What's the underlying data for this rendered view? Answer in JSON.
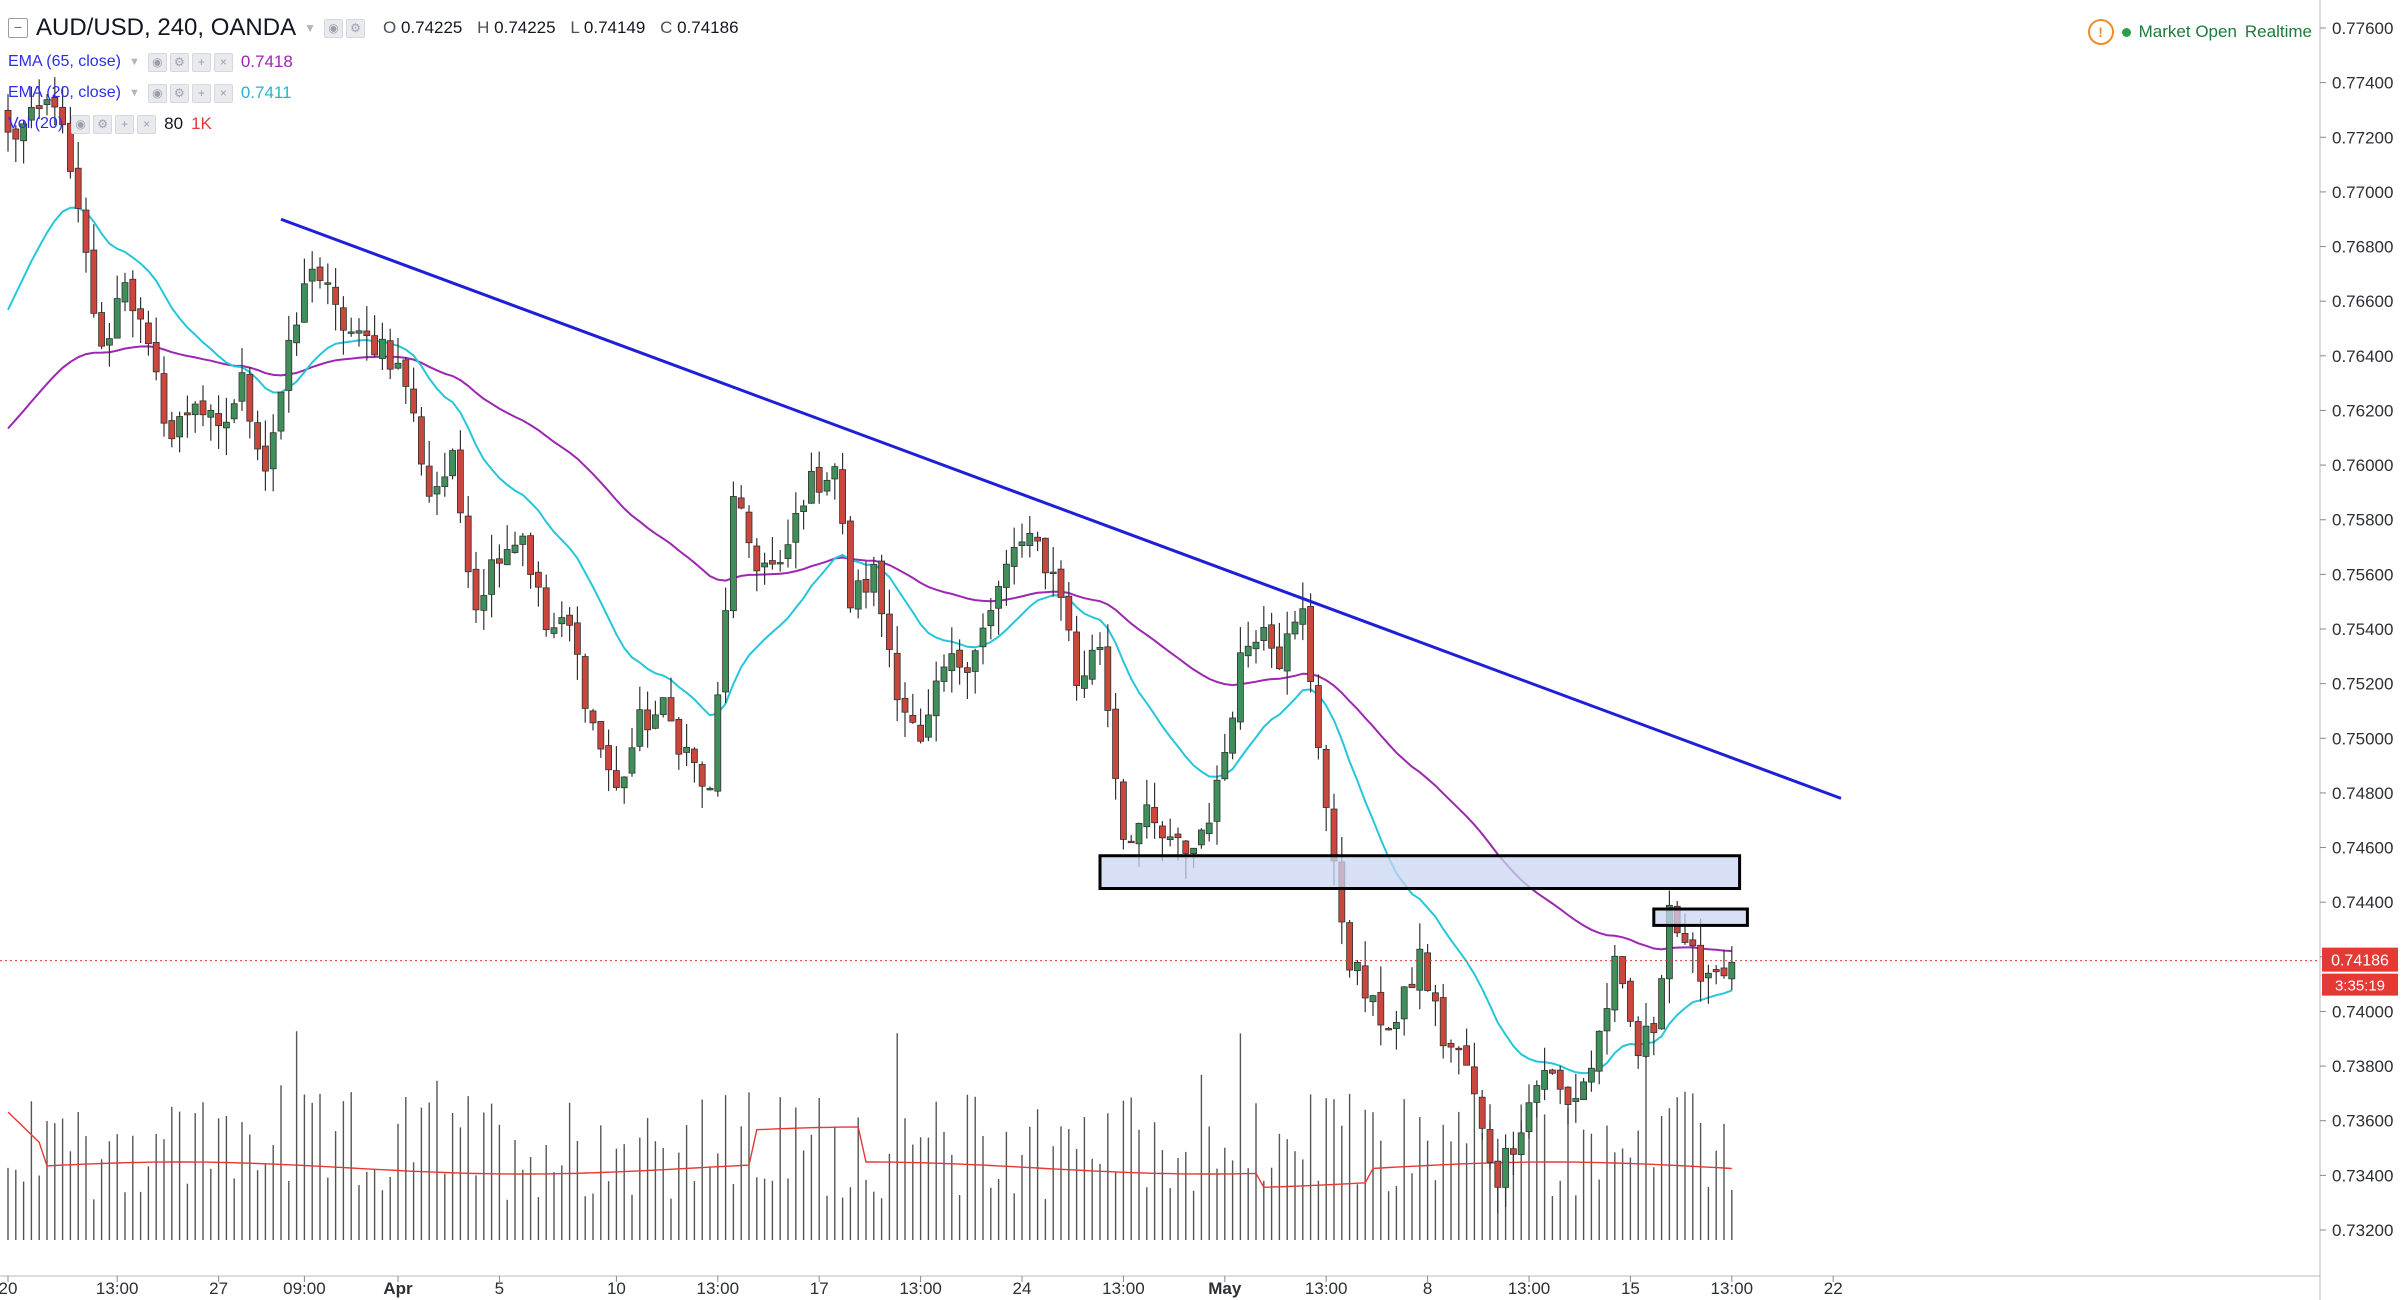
{
  "header": {
    "symbol_title": "AUD/USD, 240, OANDA",
    "open_label": "O",
    "open": "0.74225",
    "high_label": "H",
    "high": "0.74225",
    "low_label": "L",
    "low": "0.74149",
    "close_label": "C",
    "close": "0.74186",
    "status_text": "Market Open",
    "realtime_text": "Realtime",
    "warning_glyph": "!"
  },
  "indicators": [
    {
      "label": "EMA (65, close)",
      "value": "0.7418",
      "color": "#9c27b0"
    },
    {
      "label": "EMA (20, close)",
      "value": "0.7411",
      "color": "#26c6da"
    },
    {
      "label": "Vol (20)",
      "value_a": "80",
      "value_b": "1K",
      "color": "#e53935"
    }
  ],
  "price_badge": {
    "price": "0.74186",
    "countdown": "3:35:19",
    "color": "#e53935"
  },
  "colors": {
    "up": "#3f8f5a",
    "down": "#c9473d",
    "trendline": "#1f1fd8",
    "zone_fill": "#c9d6f2",
    "volume": "#555555",
    "vol_ma": "#e53935",
    "price_line": "#e53935"
  },
  "chart_data": {
    "type": "candlestick",
    "title": "AUD/USD, 240, OANDA",
    "ylim": [
      0.731,
      0.7775
    ],
    "y_ticks": [
      "0.77600",
      "0.77400",
      "0.77200",
      "0.77000",
      "0.76800",
      "0.76600",
      "0.76400",
      "0.76200",
      "0.76000",
      "0.75800",
      "0.75600",
      "0.75400",
      "0.75200",
      "0.75000",
      "0.74800",
      "0.74600",
      "0.74400",
      "0.74200",
      "0.74000",
      "0.73800",
      "0.73600",
      "0.73400",
      "0.73200"
    ],
    "x_ticks": [
      {
        "label": "20",
        "bar": 0
      },
      {
        "label": "13:00",
        "bar": 14
      },
      {
        "label": "27",
        "bar": 27
      },
      {
        "label": "09:00",
        "bar": 38
      },
      {
        "label": "Apr",
        "bar": 50
      },
      {
        "label": "5",
        "bar": 63
      },
      {
        "label": "10",
        "bar": 78
      },
      {
        "label": "13:00",
        "bar": 91
      },
      {
        "label": "17",
        "bar": 104
      },
      {
        "label": "13:00",
        "bar": 117
      },
      {
        "label": "24",
        "bar": 130
      },
      {
        "label": "13:00",
        "bar": 143
      },
      {
        "label": "May",
        "bar": 156
      },
      {
        "label": "13:00",
        "bar": 169
      },
      {
        "label": "8",
        "bar": 182
      },
      {
        "label": "13:00",
        "bar": 195
      },
      {
        "label": "15",
        "bar": 208
      },
      {
        "label": "13:00",
        "bar": 221
      },
      {
        "label": "22",
        "bar": 234
      }
    ],
    "trendline": {
      "from": {
        "bar": 35,
        "price": 0.769
      },
      "to": {
        "bar": 235,
        "price": 0.7478
      }
    },
    "zones": [
      {
        "bar_from": 140,
        "bar_to": 222,
        "price_top": 0.7457,
        "price_bottom": 0.7445
      },
      {
        "bar_from": 211,
        "bar_to": 223,
        "price_top": 0.74375,
        "price_bottom": 0.74315
      }
    ],
    "current_price": 0.74186,
    "anchors": [
      [
        0,
        0.772
      ],
      [
        3,
        0.7725
      ],
      [
        6,
        0.7735
      ],
      [
        8,
        0.7705
      ],
      [
        10,
        0.7675
      ],
      [
        12,
        0.764
      ],
      [
        15,
        0.767
      ],
      [
        18,
        0.764
      ],
      [
        21,
        0.761
      ],
      [
        24,
        0.7625
      ],
      [
        27,
        0.761
      ],
      [
        30,
        0.763
      ],
      [
        33,
        0.76
      ],
      [
        36,
        0.764
      ],
      [
        39,
        0.7675
      ],
      [
        42,
        0.7655
      ],
      [
        45,
        0.7645
      ],
      [
        48,
        0.7645
      ],
      [
        51,
        0.763
      ],
      [
        54,
        0.759
      ],
      [
        57,
        0.76
      ],
      [
        60,
        0.755
      ],
      [
        63,
        0.757
      ],
      [
        66,
        0.7575
      ],
      [
        69,
        0.754
      ],
      [
        72,
        0.754
      ],
      [
        75,
        0.7505
      ],
      [
        78,
        0.748
      ],
      [
        81,
        0.7505
      ],
      [
        84,
        0.751
      ],
      [
        87,
        0.7495
      ],
      [
        90,
        0.7478
      ],
      [
        93,
        0.7585
      ],
      [
        96,
        0.7565
      ],
      [
        99,
        0.756
      ],
      [
        102,
        0.759
      ],
      [
        106,
        0.76
      ],
      [
        108,
        0.755
      ],
      [
        111,
        0.756
      ],
      [
        114,
        0.752
      ],
      [
        117,
        0.7495
      ],
      [
        120,
        0.7525
      ],
      [
        123,
        0.753
      ],
      [
        126,
        0.7545
      ],
      [
        129,
        0.757
      ],
      [
        132,
        0.757
      ],
      [
        135,
        0.7555
      ],
      [
        137,
        0.752
      ],
      [
        140,
        0.7535
      ],
      [
        143,
        0.7465
      ],
      [
        146,
        0.747
      ],
      [
        149,
        0.746
      ],
      [
        152,
        0.746
      ],
      [
        155,
        0.748
      ],
      [
        158,
        0.753
      ],
      [
        161,
        0.7545
      ],
      [
        163,
        0.753
      ],
      [
        166,
        0.7545
      ],
      [
        168,
        0.75
      ],
      [
        170,
        0.745
      ],
      [
        172,
        0.742
      ],
      [
        175,
        0.74
      ],
      [
        178,
        0.7395
      ],
      [
        181,
        0.742
      ],
      [
        184,
        0.739
      ],
      [
        187,
        0.738
      ],
      [
        189,
        0.7355
      ],
      [
        191,
        0.734
      ],
      [
        194,
        0.736
      ],
      [
        197,
        0.738
      ],
      [
        200,
        0.7365
      ],
      [
        203,
        0.738
      ],
      [
        206,
        0.7415
      ],
      [
        209,
        0.7385
      ],
      [
        211,
        0.7395
      ],
      [
        213,
        0.744
      ],
      [
        215,
        0.742
      ],
      [
        218,
        0.7415
      ],
      [
        221,
        0.7418
      ]
    ],
    "series": [
      {
        "name": "EMA (65, close)",
        "color": "#9c27b0"
      },
      {
        "name": "EMA (20, close)",
        "color": "#26c6da"
      },
      {
        "name": "Vol (20)",
        "color": "#e53935"
      }
    ]
  }
}
